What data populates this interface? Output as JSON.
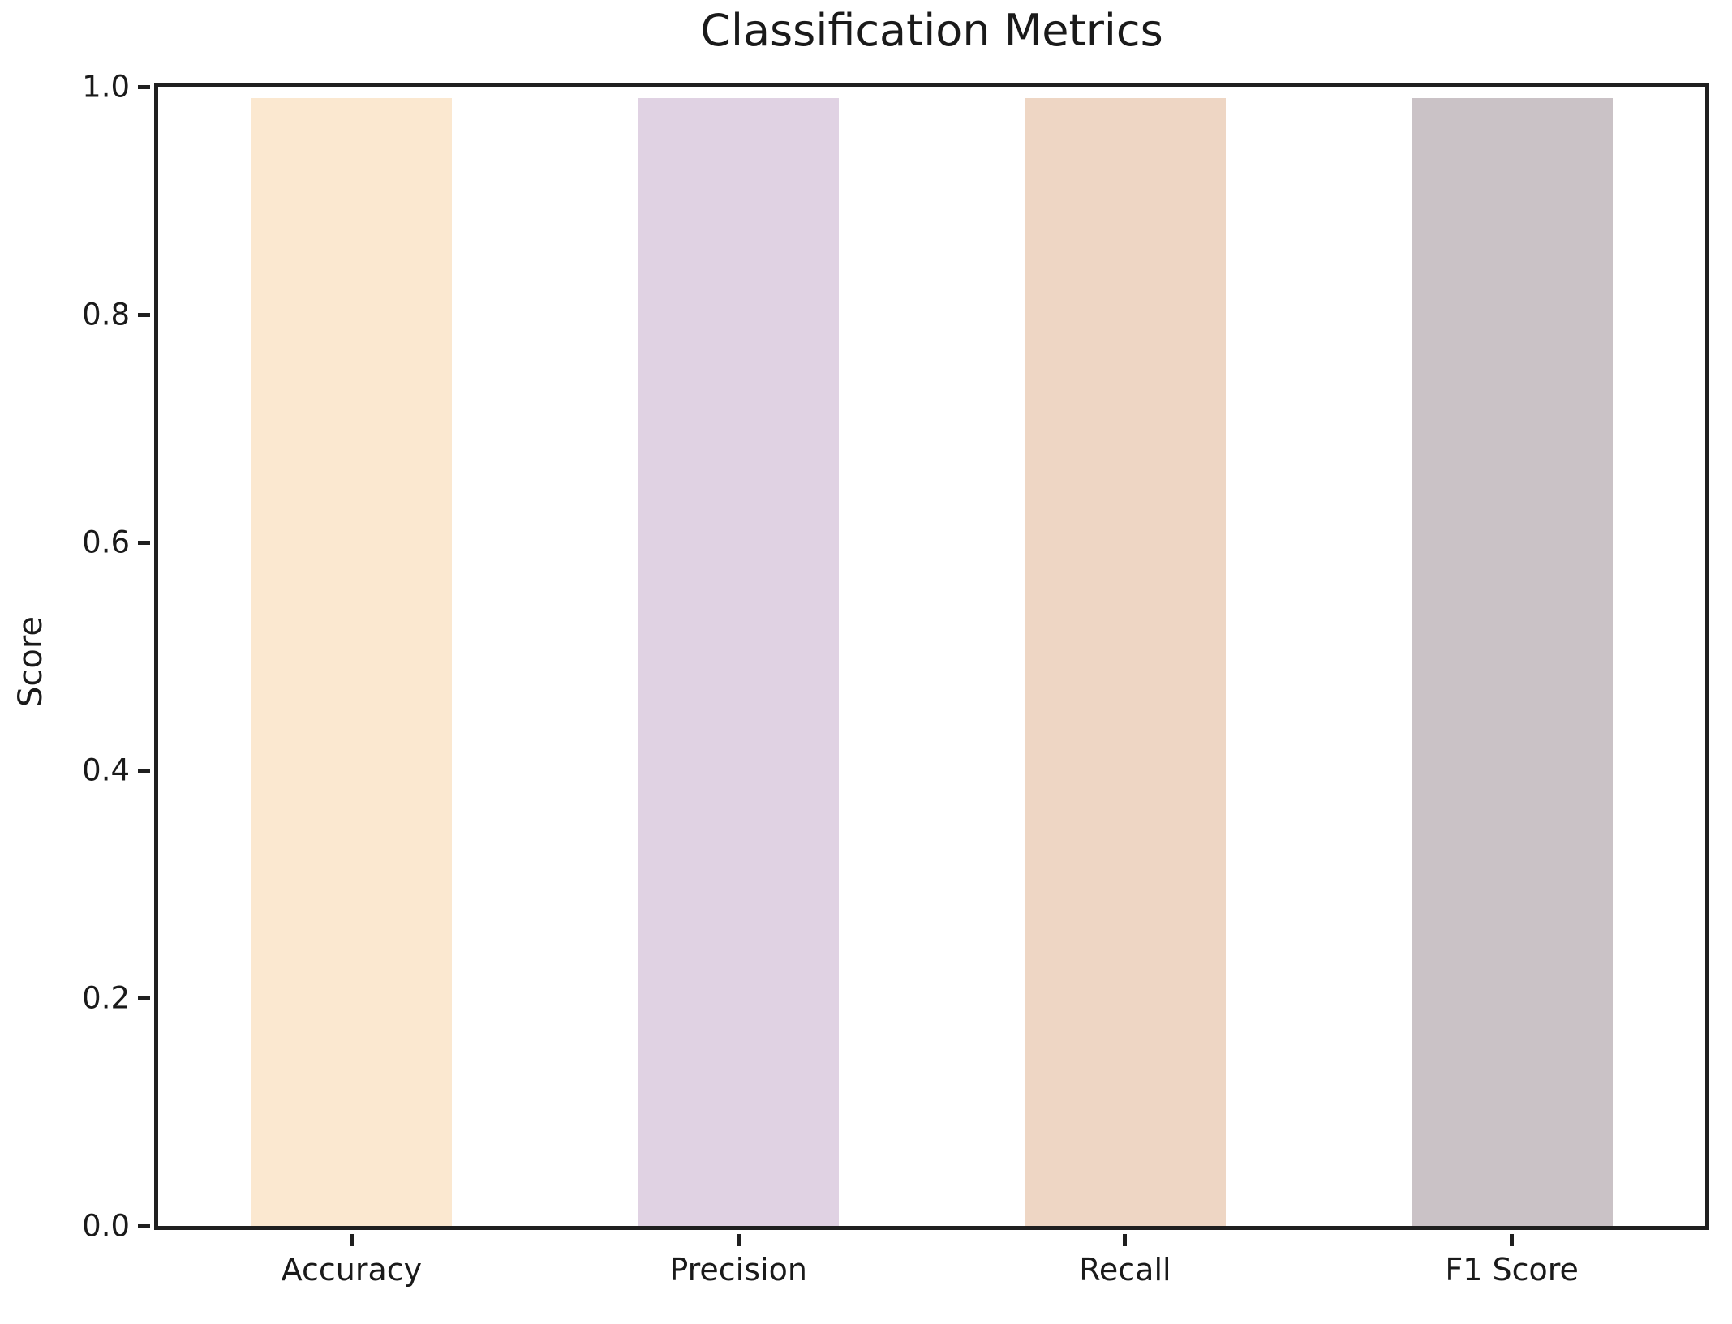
{
  "chart_data": {
    "type": "bar",
    "title": "Classification Metrics",
    "xlabel": "",
    "ylabel": "Score",
    "categories": [
      "Accuracy",
      "Precision",
      "Recall",
      "F1 Score"
    ],
    "values": [
      0.99,
      0.99,
      0.99,
      0.99
    ],
    "bar_colors": [
      "#fbe8d0",
      "#e0d2e3",
      "#eed6c4",
      "#cac2c6"
    ],
    "ylim": [
      0.0,
      1.0
    ],
    "yticks": [
      0.0,
      0.2,
      0.4,
      0.6,
      0.8,
      1.0
    ],
    "ytick_labels": [
      "0.0",
      "0.2",
      "0.4",
      "0.6",
      "0.8",
      "1.0"
    ],
    "grid": false,
    "legend_position": "none",
    "bar_width_fraction": 0.52,
    "axis_color": "#1f1f1f",
    "text_color": "#1a1a1a",
    "background_color": "#ffffff"
  }
}
